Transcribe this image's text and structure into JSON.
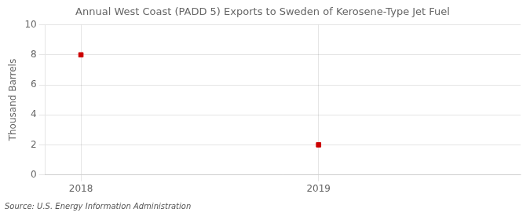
{
  "chart_data": {
    "type": "scatter",
    "title": "Annual West Coast (PADD 5) Exports to Sweden of Kerosene-Type Jet Fuel",
    "ylabel": "Thousand Barrels",
    "annotation": "Source: U.S. Energy Information Administration",
    "x": [
      2018,
      2019
    ],
    "values": [
      8,
      2
    ],
    "xlim": [
      2017.85,
      2019.85
    ],
    "xticks": [
      2018,
      2019
    ],
    "ylim": [
      0,
      10
    ],
    "yticks": [
      0,
      2,
      4,
      6,
      8,
      10
    ],
    "grid": true,
    "color": "#cc0000",
    "marker": "square"
  }
}
